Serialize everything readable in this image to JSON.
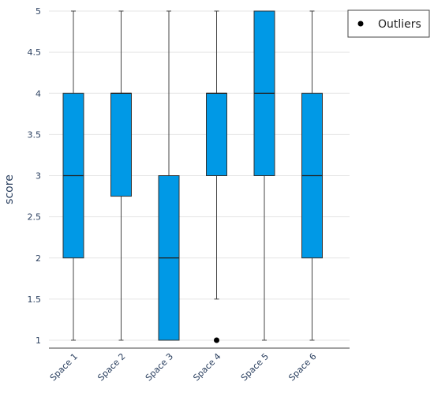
{
  "chart_data": {
    "type": "box",
    "categories": [
      "Space 1",
      "Space 2",
      "Space 3",
      "Space 4",
      "Space 5",
      "Space 6"
    ],
    "boxes": [
      {
        "min": 1,
        "q1": 2,
        "median": 3,
        "q3": 4,
        "max": 5
      },
      {
        "min": 1,
        "q1": 2.75,
        "median": 4,
        "q3": 4,
        "max": 5
      },
      {
        "min": 1,
        "q1": 1,
        "median": 2,
        "q3": 3,
        "max": 5
      },
      {
        "min": 1.5,
        "q1": 3,
        "median": 4,
        "q3": 4,
        "max": 5
      },
      {
        "min": 1,
        "q1": 3,
        "median": 4,
        "q3": 5,
        "max": 5
      },
      {
        "min": 1,
        "q1": 2,
        "median": 3,
        "q3": 4,
        "max": 5
      }
    ],
    "outliers": [
      {
        "category": "Space 4",
        "y": 1
      }
    ],
    "ylabel": "score",
    "xlabel": "",
    "ylim": [
      1,
      5
    ],
    "yticks": [
      "1",
      "1.5",
      "2",
      "2.5",
      "3",
      "3.5",
      "4",
      "4.5",
      "5"
    ],
    "grid": true,
    "box_color": "#0099e6",
    "legend": {
      "position": "top-right",
      "entries": [
        "Outliers"
      ]
    }
  }
}
